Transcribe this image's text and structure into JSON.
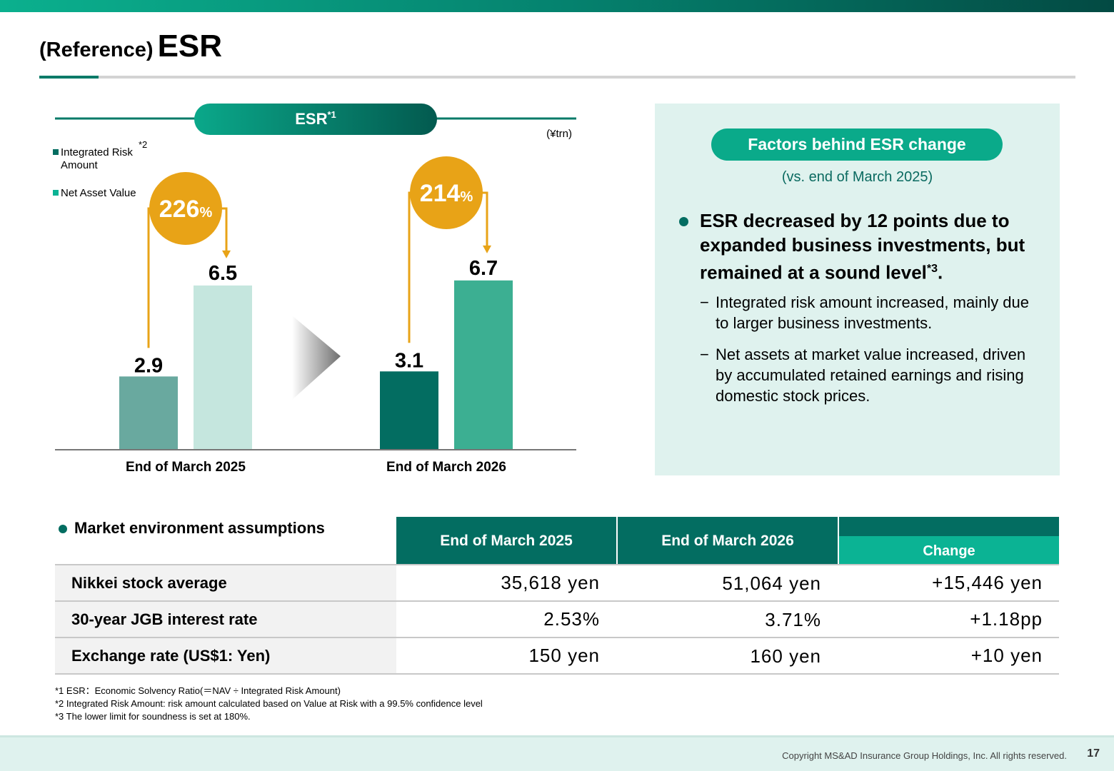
{
  "header": {
    "title_prefix": "(Reference)",
    "title_main": "ESR"
  },
  "chart": {
    "banner_label": "ESR",
    "banner_note": "*1",
    "unit": "(¥trn)",
    "legend": [
      {
        "label_line1": "Integrated Risk",
        "label_line2": "Amount",
        "note": "*2",
        "color": "#036d61"
      },
      {
        "label_line1": "Net Asset Value",
        "label_line2": "",
        "note": "",
        "color": "#0bb394"
      }
    ],
    "ratio_suffix": "%"
  },
  "chart_data": {
    "type": "bar",
    "categories": [
      "End of March 2025",
      "End of March 2026"
    ],
    "series": [
      {
        "name": "Integrated Risk Amount",
        "values": [
          2.9,
          3.1
        ]
      },
      {
        "name": "Net Asset Value",
        "values": [
          6.5,
          6.7
        ]
      }
    ],
    "value_labels": [
      [
        "2.9",
        "3.1"
      ],
      [
        "6.5",
        "6.7"
      ]
    ],
    "ratios": [
      "226",
      "214"
    ],
    "colors": {
      "risk": [
        "#69a99f",
        "#036d61"
      ],
      "nav": [
        "#c5e6de",
        "#3caf92"
      ],
      "ratio_circle": "#e8a317"
    },
    "ylim": [
      0,
      9
    ]
  },
  "factors": {
    "pill": "Factors behind ESR change",
    "subtitle": "(vs. end of March 2025)",
    "main_point": "ESR decreased by 12 points due to expanded business investments, but remained at a sound level",
    "main_note": "*3",
    "main_end": ".",
    "dash": "−",
    "sub_points": [
      "Integrated risk amount increased, mainly due to larger business investments.",
      "Net assets at market value increased, driven by accumulated retained earnings and rising domestic stock prices."
    ]
  },
  "market": {
    "title": "Market environment assumptions",
    "columns": [
      "End of March 2025",
      "End of March 2026",
      "Change"
    ],
    "rows": [
      {
        "label": "Nikkei stock average",
        "v1": "35,618 yen",
        "v2": "51,064 yen",
        "change": "+15,446 yen"
      },
      {
        "label": "30-year JGB interest rate",
        "v1": "2.53%",
        "v2": "3.71%",
        "change": "+1.18pp"
      },
      {
        "label": "Exchange rate (US$1: Yen)",
        "v1": "150 yen",
        "v2": "160 yen",
        "change": "+10 yen"
      }
    ]
  },
  "notes": [
    "*1 ESR：Economic Solvency Ratio(＝NAV ÷ Integrated Risk Amount)",
    "*2 Integrated Risk Amount: risk amount calculated based on Value at Risk with a 99.5% confidence level",
    "*3 The lower limit for soundness is set at 180%."
  ],
  "footer": {
    "copyright": "Copyright MS&AD Insurance Group Holdings, Inc. All rights reserved.",
    "page": "17"
  }
}
